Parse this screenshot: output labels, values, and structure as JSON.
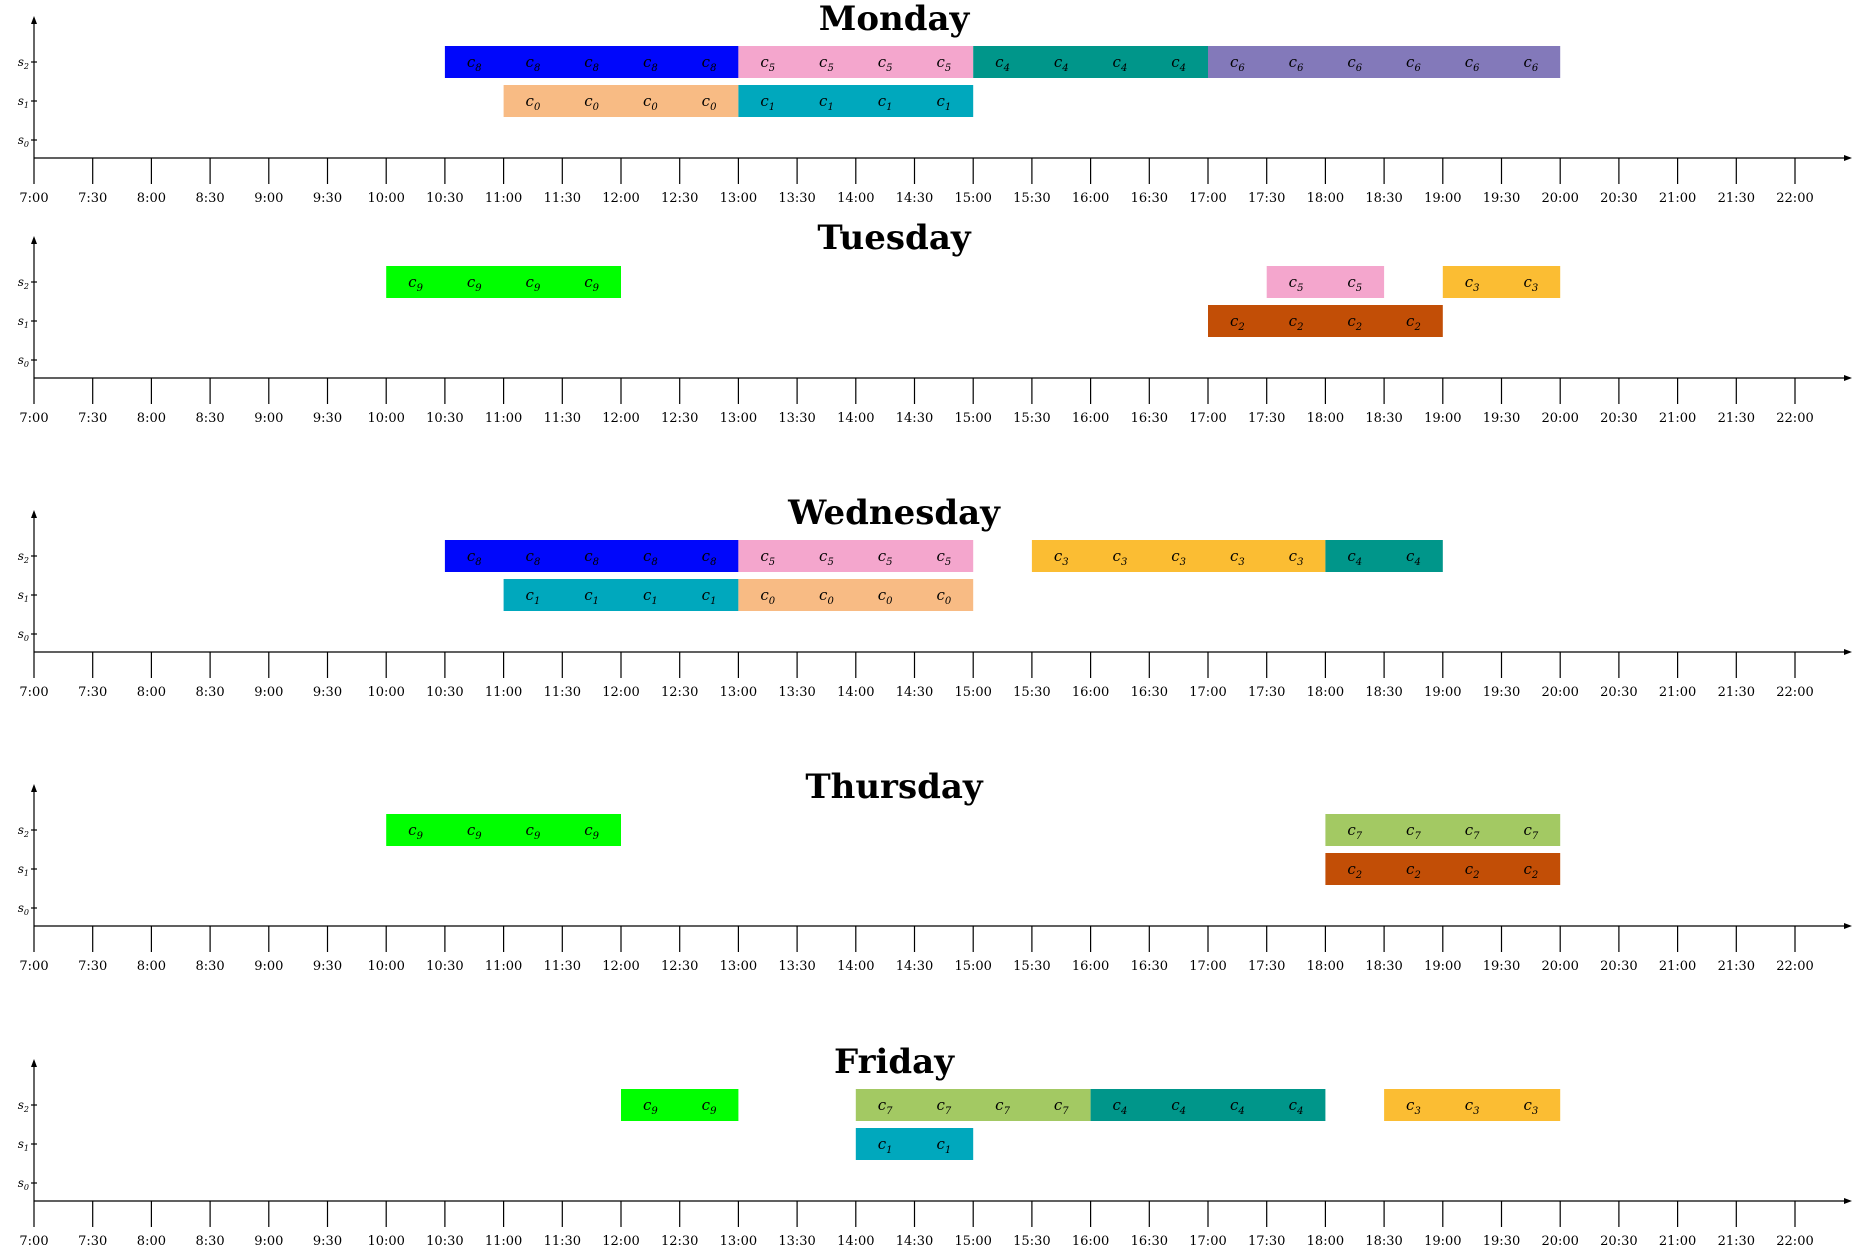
{
  "chart_data": {
    "type": "timeline",
    "x_ticks": [
      "7:00",
      "7:30",
      "8:00",
      "8:30",
      "9:00",
      "9:30",
      "10:00",
      "10:30",
      "11:00",
      "11:30",
      "12:00",
      "12:30",
      "13:00",
      "13:30",
      "14:00",
      "14:30",
      "15:00",
      "15:30",
      "16:00",
      "16:30",
      "17:00",
      "17:30",
      "18:00",
      "18:30",
      "19:00",
      "19:30",
      "20:00",
      "20:30",
      "21:00",
      "21:30",
      "22:00"
    ],
    "x_range": [
      "7:00",
      "22:00"
    ],
    "y_slots": [
      "s0",
      "s1",
      "s2"
    ],
    "colors": {
      "c0": "#f8bb84",
      "c1": "#00a8bd",
      "c2": "#c24e06",
      "c3": "#fbbd33",
      "c4": "#00968a",
      "c5": "#f4a6cd",
      "c6": "#8379ba",
      "c7": "#a3c963",
      "c8": "#0007fb",
      "c9": "#00ff00"
    },
    "days": [
      {
        "title": "Monday",
        "tasks": [
          {
            "label": "c8",
            "slot": 2,
            "start": "10:30",
            "end": "13:00"
          },
          {
            "label": "c5",
            "slot": 2,
            "start": "13:00",
            "end": "15:00"
          },
          {
            "label": "c4",
            "slot": 2,
            "start": "15:00",
            "end": "17:00"
          },
          {
            "label": "c6",
            "slot": 2,
            "start": "17:00",
            "end": "20:00"
          },
          {
            "label": "c0",
            "slot": 1,
            "start": "11:00",
            "end": "13:00"
          },
          {
            "label": "c1",
            "slot": 1,
            "start": "13:00",
            "end": "15:00"
          }
        ]
      },
      {
        "title": "Tuesday",
        "tasks": [
          {
            "label": "c9",
            "slot": 2,
            "start": "10:00",
            "end": "12:00"
          },
          {
            "label": "c5",
            "slot": 2,
            "start": "17:30",
            "end": "18:30"
          },
          {
            "label": "c3",
            "slot": 2,
            "start": "19:00",
            "end": "20:00"
          },
          {
            "label": "c2",
            "slot": 1,
            "start": "17:00",
            "end": "19:00"
          }
        ]
      },
      {
        "title": "Wednesday",
        "tasks": [
          {
            "label": "c8",
            "slot": 2,
            "start": "10:30",
            "end": "13:00"
          },
          {
            "label": "c5",
            "slot": 2,
            "start": "13:00",
            "end": "15:00"
          },
          {
            "label": "c3",
            "slot": 2,
            "start": "15:30",
            "end": "18:00"
          },
          {
            "label": "c4",
            "slot": 2,
            "start": "18:00",
            "end": "19:00"
          },
          {
            "label": "c1",
            "slot": 1,
            "start": "11:00",
            "end": "13:00"
          },
          {
            "label": "c0",
            "slot": 1,
            "start": "13:00",
            "end": "15:00"
          }
        ]
      },
      {
        "title": "Thursday",
        "tasks": [
          {
            "label": "c9",
            "slot": 2,
            "start": "10:00",
            "end": "12:00"
          },
          {
            "label": "c7",
            "slot": 2,
            "start": "18:00",
            "end": "20:00"
          },
          {
            "label": "c2",
            "slot": 1,
            "start": "18:00",
            "end": "20:00"
          }
        ]
      },
      {
        "title": "Friday",
        "tasks": [
          {
            "label": "c9",
            "slot": 2,
            "start": "12:00",
            "end": "13:00"
          },
          {
            "label": "c7",
            "slot": 2,
            "start": "14:00",
            "end": "16:00"
          },
          {
            "label": "c4",
            "slot": 2,
            "start": "16:00",
            "end": "18:00"
          },
          {
            "label": "c3",
            "slot": 2,
            "start": "18:30",
            "end": "20:00"
          },
          {
            "label": "c1",
            "slot": 1,
            "start": "14:00",
            "end": "15:00"
          }
        ]
      }
    ]
  }
}
